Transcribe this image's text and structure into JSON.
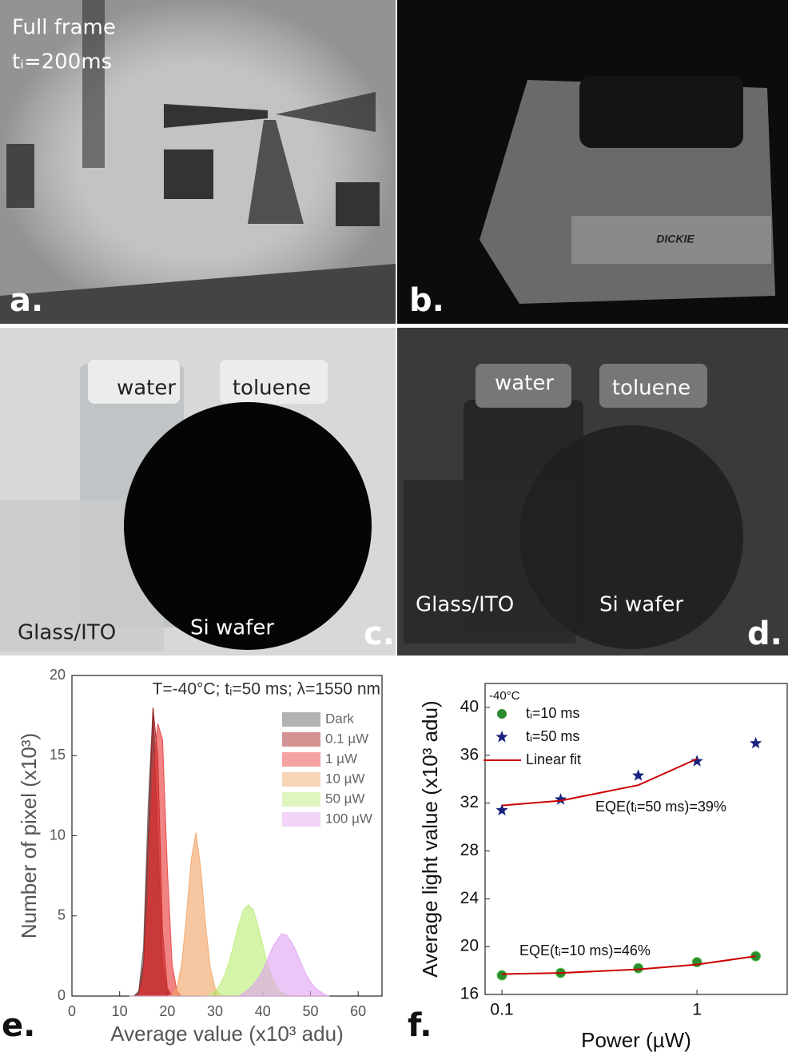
{
  "photos": [
    {
      "label": "a.",
      "texts": [
        "Full frame",
        "tᵢ=200ms"
      ]
    },
    {
      "label": "b."
    },
    {
      "label": "c.",
      "texts": [
        "water",
        "toluene",
        "Glass/ITO",
        "Si wafer"
      ]
    },
    {
      "label": "d.",
      "texts": [
        "water",
        "toluene",
        "Glass/ITO",
        "Si wafer"
      ]
    }
  ],
  "chart_data": [
    {
      "type": "area",
      "panel_label": "e.",
      "title": "T=-40°C; tᵢ=50 ms; λ=1550 nm",
      "x_label": "Average value (x10³ adu)",
      "y_label": "Number of pixel (x10³)",
      "xlim": [
        0,
        65
      ],
      "xticks": [
        0,
        10,
        20,
        30,
        40,
        50,
        60
      ],
      "ylim": [
        0,
        20
      ],
      "yticks": [
        0,
        5,
        10,
        15,
        20
      ],
      "legend": "upper right",
      "x": [
        12,
        13,
        14,
        15,
        16,
        17,
        18,
        19,
        20,
        21,
        22,
        23,
        24,
        25,
        26,
        27,
        28,
        29,
        30,
        31,
        32,
        33,
        34,
        35,
        36,
        37,
        38,
        39,
        40,
        41,
        42,
        43,
        44,
        45,
        46,
        47,
        48,
        49,
        50,
        51,
        52,
        53,
        54
      ],
      "series": [
        {
          "name": "Dark",
          "color": "#555555",
          "values": [
            0,
            0,
            0.3,
            3,
            12,
            18,
            10,
            2,
            0.3,
            0,
            0,
            0,
            0,
            0,
            0,
            0,
            0,
            0,
            0,
            0,
            0,
            0,
            0,
            0,
            0,
            0,
            0,
            0,
            0,
            0,
            0,
            0,
            0,
            0,
            0,
            0,
            0,
            0,
            0,
            0,
            0,
            0,
            0
          ]
        },
        {
          "name": "0.1 µW",
          "color": "#a01010",
          "values": [
            0,
            0,
            0.2,
            2,
            10,
            18,
            15,
            4,
            0.5,
            0,
            0,
            0,
            0,
            0,
            0,
            0,
            0,
            0,
            0,
            0,
            0,
            0,
            0,
            0,
            0,
            0,
            0,
            0,
            0,
            0,
            0,
            0,
            0,
            0,
            0,
            0,
            0,
            0,
            0,
            0,
            0,
            0,
            0
          ]
        },
        {
          "name": "1 µW",
          "color": "#e83030",
          "values": [
            0,
            0,
            0,
            1,
            6,
            14,
            17,
            16,
            8,
            2,
            0.3,
            0,
            0,
            0,
            0,
            0,
            0,
            0,
            0,
            0,
            0,
            0,
            0,
            0,
            0,
            0,
            0,
            0,
            0,
            0,
            0,
            0,
            0,
            0,
            0,
            0,
            0,
            0,
            0,
            0,
            0,
            0,
            0
          ]
        },
        {
          "name": "10 µW",
          "color": "#f0a060",
          "values": [
            0,
            0,
            0,
            0,
            0,
            0,
            0,
            0,
            0,
            0.1,
            0.5,
            2,
            5,
            8.5,
            10.2,
            8,
            4.5,
            1.8,
            0.5,
            0.1,
            0,
            0,
            0,
            0,
            0,
            0,
            0,
            0,
            0,
            0,
            0,
            0,
            0,
            0,
            0,
            0,
            0,
            0,
            0,
            0,
            0,
            0,
            0
          ]
        },
        {
          "name": "50 µW",
          "color": "#b8ec70",
          "values": [
            0,
            0,
            0,
            0,
            0,
            0,
            0,
            0,
            0,
            0,
            0,
            0,
            0,
            0,
            0,
            0,
            0,
            0.1,
            0.3,
            0.7,
            1.3,
            2.2,
            3.3,
            4.5,
            5.4,
            5.7,
            5.4,
            4.4,
            3.2,
            2,
            1.1,
            0.5,
            0.2,
            0.1,
            0,
            0,
            0,
            0,
            0,
            0,
            0,
            0,
            0
          ]
        },
        {
          "name": "100 µW",
          "color": "#e0a0f0",
          "values": [
            0,
            0,
            0,
            0,
            0,
            0,
            0,
            0,
            0,
            0,
            0,
            0,
            0,
            0,
            0,
            0,
            0,
            0,
            0,
            0,
            0,
            0,
            0,
            0,
            0.2,
            0.4,
            0.7,
            1.1,
            1.6,
            2.3,
            3,
            3.5,
            3.9,
            3.8,
            3.4,
            2.8,
            2.1,
            1.4,
            0.9,
            0.5,
            0.3,
            0.1,
            0
          ]
        }
      ]
    },
    {
      "type": "scatter",
      "panel_label": "f.",
      "x_label": "Power (µW)",
      "y_label": "Average light value (x10³ adu)",
      "log_x": true,
      "xlim": [
        0.082,
        2.9
      ],
      "xticks": [
        0.1,
        1
      ],
      "ylim": [
        16,
        42
      ],
      "yticks": [
        16,
        20,
        24,
        28,
        32,
        36,
        40
      ],
      "legend": "upper left",
      "note": "-40°C",
      "annotations": [
        "EQE(tᵢ=50 ms)=39%",
        "EQE(tᵢ=10 ms)=46%"
      ],
      "series": [
        {
          "name": "tᵢ=10 ms",
          "color": "#2e8b2e",
          "marker": "circle",
          "x": [
            0.1,
            0.2,
            0.5,
            1,
            2
          ],
          "values": [
            17.6,
            17.8,
            18.2,
            18.7,
            19.2
          ]
        },
        {
          "name": "tᵢ=50 ms",
          "color": "#1a237e",
          "marker": "star",
          "x": [
            0.1,
            0.2,
            0.5,
            1,
            2
          ],
          "values": [
            31.4,
            32.3,
            34.3,
            35.5,
            37.0
          ]
        },
        {
          "name": "Linear fit",
          "color": "#cc0000",
          "marker": "line",
          "x": [
            0.1,
            0.2,
            0.5,
            1,
            2,
            0.1,
            0.2,
            0.5,
            1,
            2
          ],
          "values": [
            31.8,
            32.2,
            33.5,
            35.7,
            null,
            17.7,
            17.8,
            18.1,
            18.5,
            19.2
          ]
        }
      ]
    }
  ]
}
